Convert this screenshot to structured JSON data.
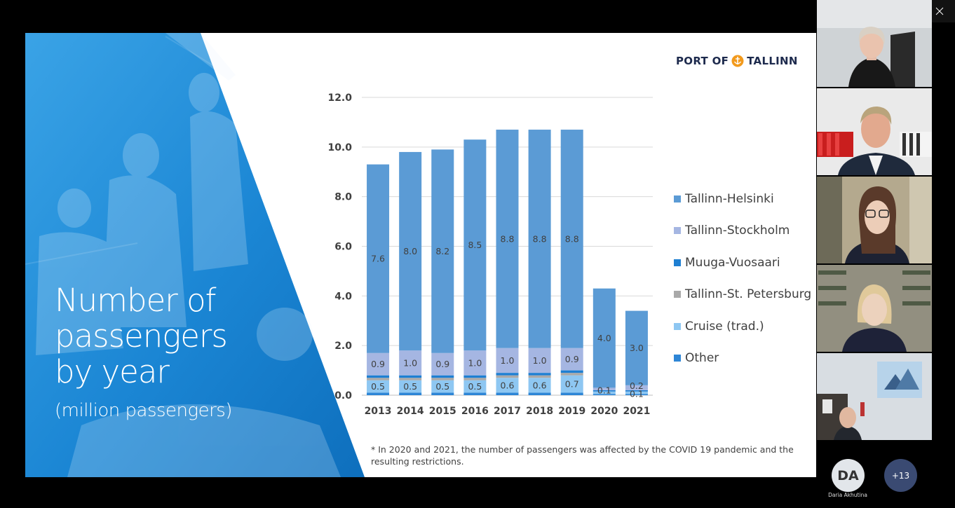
{
  "window": {
    "minimize_icon": "minimize-icon",
    "restore_icon": "restore-icon",
    "close_icon": "close-icon"
  },
  "slide": {
    "title_line1": "Number of",
    "title_line2": "passengers",
    "title_line3": "by year",
    "subtitle": "(million passengers)",
    "logo_left": "PORT OF",
    "logo_right": "TALLINN",
    "footnote": "* In 2020 and 2021, the number of passengers was affected by the COVID 19 pandemic and the resulting restrictions."
  },
  "chart_data": {
    "type": "bar",
    "stacked": true,
    "categories": [
      "2013",
      "2014",
      "2015",
      "2016",
      "2017",
      "2018",
      "2019",
      "2020",
      "2021"
    ],
    "ylim": [
      0,
      12
    ],
    "yticks": [
      "0.0",
      "2.0",
      "4.0",
      "6.0",
      "8.0",
      "10.0",
      "12.0"
    ],
    "grid": true,
    "legend_position": "right",
    "series": [
      {
        "name": "Other",
        "color": "#2e86d6",
        "values": [
          0.1,
          0.1,
          0.1,
          0.1,
          0.1,
          0.1,
          0.1,
          0.05,
          0.05
        ]
      },
      {
        "name": "Cruise (trad.)",
        "color": "#8ec7f2",
        "values": [
          0.5,
          0.5,
          0.5,
          0.5,
          0.6,
          0.6,
          0.7,
          0.1,
          0.1
        ]
      },
      {
        "name": "Tallinn-St. Petersburg",
        "color": "#a9a9a9",
        "values": [
          0.1,
          0.1,
          0.1,
          0.1,
          0.1,
          0.1,
          0.1,
          0.0,
          0.0
        ]
      },
      {
        "name": "Muuga-Vuosaari",
        "color": "#1e7fd2",
        "values": [
          0.1,
          0.1,
          0.1,
          0.1,
          0.1,
          0.1,
          0.1,
          0.05,
          0.05
        ]
      },
      {
        "name": "Tallinn-Stockholm",
        "color": "#a5b6e2",
        "values": [
          0.9,
          1.0,
          0.9,
          1.0,
          1.0,
          1.0,
          0.9,
          0.1,
          0.2
        ]
      },
      {
        "name": "Tallinn-Helsinki",
        "color": "#5b9bd5",
        "values": [
          7.6,
          8.0,
          8.2,
          8.5,
          8.8,
          8.8,
          8.8,
          4.0,
          3.0
        ]
      }
    ],
    "data_labels": {
      "Tallinn-Helsinki": [
        "7.6",
        "8.0",
        "8.2",
        "8.5",
        "8.8",
        "8.8",
        "8.8",
        "4.0",
        "3.0"
      ],
      "Tallinn-Stockholm": [
        "0.9",
        "1.0",
        "0.9",
        "1.0",
        "1.0",
        "1.0",
        "0.9",
        "0.1",
        "0.2"
      ],
      "Cruise (trad.)": [
        "0.5",
        "0.5",
        "0.5",
        "0.5",
        "0.6",
        "0.6",
        "0.7",
        "",
        "0.1"
      ]
    },
    "legend": [
      "Tallinn-Helsinki",
      "Tallinn-Stockholm",
      "Muuga-Vuosaari",
      "Tallinn-St. Petersburg",
      "Cruise (trad.)",
      "Other"
    ]
  },
  "participants": {
    "avatar_initials": "DA",
    "avatar_name": "Daria Akhutina",
    "more_count": "+13"
  }
}
